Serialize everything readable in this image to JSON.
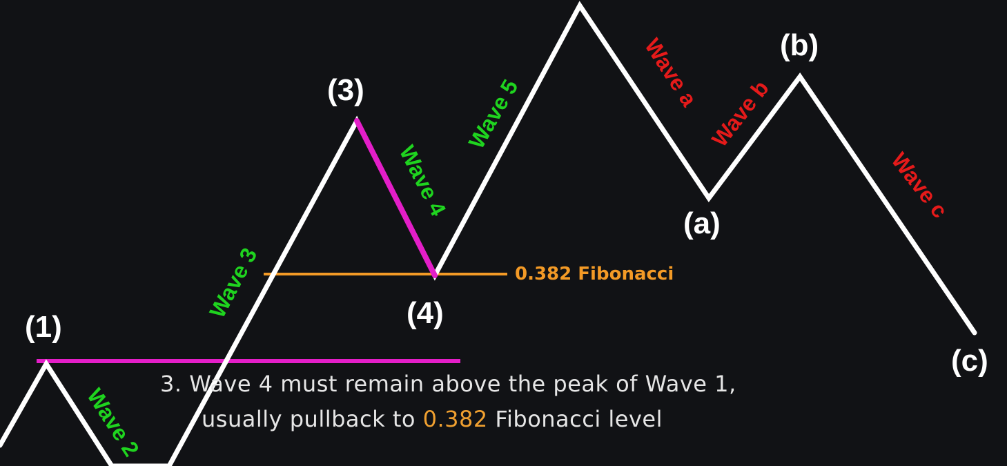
{
  "colors": {
    "background": "#111215",
    "wave_line": "#ffffff",
    "wave4_highlight": "#e41ec8",
    "wave1_peak_line": "#e41ec8",
    "fibonacci": "#f39a26",
    "impulse_label": "#1fd41f",
    "corrective_label": "#e51a1a",
    "caption_text": "#e6e6e6"
  },
  "points": {
    "p1": "(1)",
    "p3": "(3)",
    "p4": "(4)",
    "pa": "(a)",
    "pb": "(b)",
    "pc": "(c)"
  },
  "waves": {
    "w2": "Wave 2",
    "w3": "Wave 3",
    "w4": "Wave 4",
    "w5": "Wave 5",
    "wa": "Wave a",
    "wb": "Wave b",
    "wc": "Wave c"
  },
  "fibonacci": {
    "label": "0.382 Fibonacci"
  },
  "caption": {
    "line1": "3. Wave 4 must remain above the peak of Wave 1,",
    "line2_prefix": "usually pullback to ",
    "line2_highlight": "0.382",
    "line2_suffix": " Fibonacci level"
  }
}
